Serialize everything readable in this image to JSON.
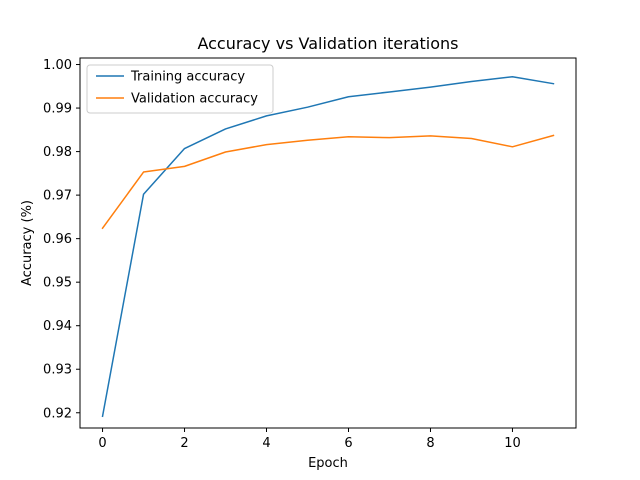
{
  "chart_data": {
    "type": "line",
    "title": "Accuracy vs Validation iterations",
    "xlabel": "Epoch",
    "ylabel": "Accuracy (%)",
    "xlim": [
      -0.55,
      11.55
    ],
    "ylim": [
      0.9165,
      1.0015
    ],
    "xticks": [
      0,
      2,
      4,
      6,
      8,
      10
    ],
    "yticks": [
      0.92,
      0.93,
      0.94,
      0.95,
      0.96,
      0.97,
      0.98,
      0.99,
      1.0
    ],
    "ytick_labels": [
      "0.92",
      "0.93",
      "0.94",
      "0.95",
      "0.96",
      "0.97",
      "0.98",
      "0.99",
      "1.00"
    ],
    "grid": false,
    "legend_position": "upper-left",
    "x": [
      0,
      1,
      2,
      3,
      4,
      5,
      6,
      7,
      8,
      9,
      10,
      11
    ],
    "series": [
      {
        "name": "Training accuracy",
        "color": "#1f77b4",
        "values": [
          0.9192,
          0.9702,
          0.9807,
          0.9852,
          0.9882,
          0.9902,
          0.9926,
          0.9937,
          0.9948,
          0.9961,
          0.9972,
          0.9956
        ]
      },
      {
        "name": "Validation accuracy",
        "color": "#ff7f0e",
        "values": [
          0.9624,
          0.9753,
          0.9766,
          0.9799,
          0.9816,
          0.9826,
          0.9834,
          0.9832,
          0.9836,
          0.983,
          0.9811,
          0.9837
        ]
      }
    ]
  }
}
